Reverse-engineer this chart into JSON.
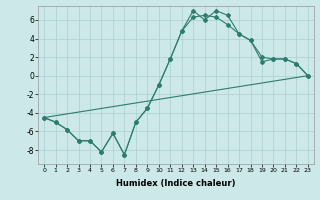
{
  "xlabel": "Humidex (Indice chaleur)",
  "bg_color": "#cce8e8",
  "line_color": "#2d7d6e",
  "grid_color": "#aacfcf",
  "xlim": [
    -0.5,
    23.5
  ],
  "ylim": [
    -9.5,
    7.5
  ],
  "xticks": [
    0,
    1,
    2,
    3,
    4,
    5,
    6,
    7,
    8,
    9,
    10,
    11,
    12,
    13,
    14,
    15,
    16,
    17,
    18,
    19,
    20,
    21,
    22,
    23
  ],
  "yticks": [
    -8,
    -6,
    -4,
    -2,
    0,
    2,
    4,
    6
  ],
  "line1_x": [
    0,
    1,
    2,
    3,
    4,
    5,
    6,
    7,
    8,
    9,
    10,
    11,
    12,
    13,
    14,
    15,
    16,
    17,
    18,
    19,
    20,
    21,
    22,
    23
  ],
  "line1_y": [
    -4.5,
    -5.0,
    -5.8,
    -7.0,
    -7.0,
    -8.2,
    -6.2,
    -8.5,
    -5.0,
    -3.5,
    -1.0,
    1.8,
    4.8,
    7.0,
    6.0,
    7.0,
    6.5,
    4.5,
    3.8,
    2.0,
    1.8,
    1.8,
    1.3,
    0.0
  ],
  "line2_x": [
    0,
    1,
    2,
    3,
    4,
    5,
    6,
    7,
    8,
    9,
    10,
    11,
    12,
    13,
    14,
    15,
    16,
    17,
    18,
    19,
    20,
    21,
    22,
    23
  ],
  "line2_y": [
    -4.5,
    -5.0,
    -5.8,
    -7.0,
    -7.0,
    -8.2,
    -6.2,
    -8.5,
    -5.0,
    -3.5,
    -1.0,
    1.8,
    4.8,
    6.3,
    6.5,
    6.3,
    5.5,
    4.5,
    3.8,
    1.5,
    1.8,
    1.8,
    1.3,
    0.0
  ],
  "line3_x": [
    0,
    23
  ],
  "line3_y": [
    -4.5,
    0.0
  ],
  "xtick_fontsize": 4.5,
  "ytick_fontsize": 5.5,
  "xlabel_fontsize": 6
}
